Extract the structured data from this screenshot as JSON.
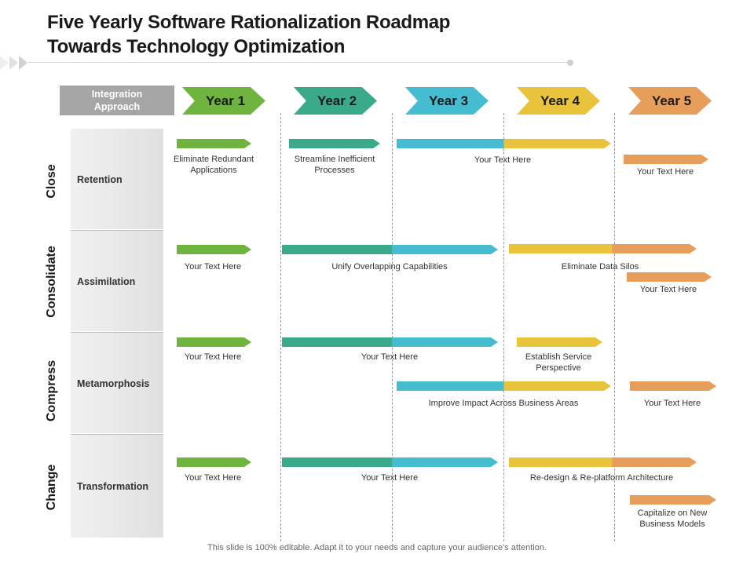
{
  "title_line1": "Five Yearly Software Rationalization Roadmap",
  "title_line2": "Towards Technology Optimization",
  "approach_header": "Integration Approach",
  "years": [
    "Year 1",
    "Year 2",
    "Year 3",
    "Year 4",
    "Year 5"
  ],
  "year_colors": [
    "#6eb43f",
    "#3aaa8a",
    "#45bcd0",
    "#e9c33b",
    "#e69e5a"
  ],
  "phases": [
    "Close",
    "Consolidate",
    "Compress",
    "Change"
  ],
  "categories": [
    "Retention",
    "Assimilation",
    "Metamorphosis",
    "Transformation"
  ],
  "tasks": {
    "retention_y1": "Eliminate Redundant Applications",
    "retention_y2": "Streamline Inefficient Processes",
    "retention_y34": "Your Text Here",
    "retention_y5": "Your Text Here",
    "assimilation_y1": "Your Text Here",
    "assimilation_y23": "Unify Overlapping Capabilities",
    "assimilation_y45": "Eliminate Data Silos",
    "assimilation_y5": "Your Text Here",
    "metamorphosis_y1": "Your Text Here",
    "metamorphosis_y23": "Your Text Here",
    "metamorphosis_y4": "Establish Service Perspective",
    "metamorphosis_y34": "Improve Impact Across Business Areas",
    "metamorphosis_y5": "Your Text Here",
    "transformation_y1": "Your Text Here",
    "transformation_y23": "Your Text Here",
    "transformation_y45": "Re-design & Re-platform Architecture",
    "transformation_y5": "Capitalize on New Business Models"
  },
  "footer": "This slide is 100% editable. Adapt it to your needs and capture your audience's attention."
}
